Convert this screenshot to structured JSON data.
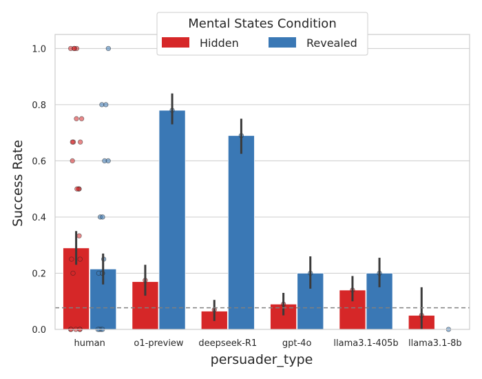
{
  "chart_data": {
    "type": "bar",
    "xlabel": "persuader_type",
    "ylabel": "Success Rate",
    "ylim": [
      0,
      1.05
    ],
    "yticks": [
      0.0,
      0.2,
      0.4,
      0.6,
      0.8,
      1.0
    ],
    "ytick_labels": [
      "0.0",
      "0.2",
      "0.4",
      "0.6",
      "0.8",
      "1.0"
    ],
    "grid": true,
    "categories": [
      "human",
      "o1-preview",
      "deepseek-R1",
      "gpt-4o",
      "llama3.1-405b",
      "llama3.1-8b"
    ],
    "series": [
      {
        "name": "Hidden",
        "color": "#d62728",
        "values": [
          0.29,
          0.17,
          0.065,
          0.09,
          0.14,
          0.05
        ],
        "ci_low": [
          0.23,
          0.12,
          0.03,
          0.05,
          0.1,
          0.0
        ],
        "ci_high": [
          0.35,
          0.23,
          0.105,
          0.13,
          0.19,
          0.15
        ],
        "points": [
          [
            0.0,
            0.0,
            0.0,
            0.0,
            0.0,
            0.2,
            0.25,
            0.25,
            0.333,
            0.5,
            0.5,
            0.5,
            0.6,
            0.667,
            0.667,
            0.667,
            0.75,
            0.75,
            1.0,
            1.0,
            1.0,
            1.0
          ],
          [
            0.175
          ],
          [
            0.07
          ],
          [
            0.09
          ],
          [
            0.14
          ],
          [
            0.05
          ]
        ]
      },
      {
        "name": "Revealed",
        "color": "#3a78b5",
        "values": [
          0.215,
          0.78,
          0.69,
          0.2,
          0.2,
          0.0
        ],
        "ci_low": [
          0.16,
          0.73,
          0.625,
          0.145,
          0.15,
          0.0
        ],
        "ci_high": [
          0.27,
          0.84,
          0.75,
          0.26,
          0.255,
          0.0
        ],
        "points": [
          [
            0.0,
            0.0,
            0.0,
            0.0,
            0.2,
            0.2,
            0.2,
            0.25,
            0.4,
            0.4,
            0.6,
            0.6,
            0.8,
            0.8,
            1.0
          ],
          [
            0.78
          ],
          [
            0.69
          ],
          [
            0.2
          ],
          [
            0.2
          ],
          [
            0.0
          ]
        ]
      }
    ],
    "reference_line": {
      "y": 0.077,
      "style": "dashed",
      "color": "#808080"
    },
    "legend": {
      "title": "Mental States Condition",
      "position": "top-center",
      "entries": [
        "Hidden",
        "Revealed"
      ]
    }
  }
}
